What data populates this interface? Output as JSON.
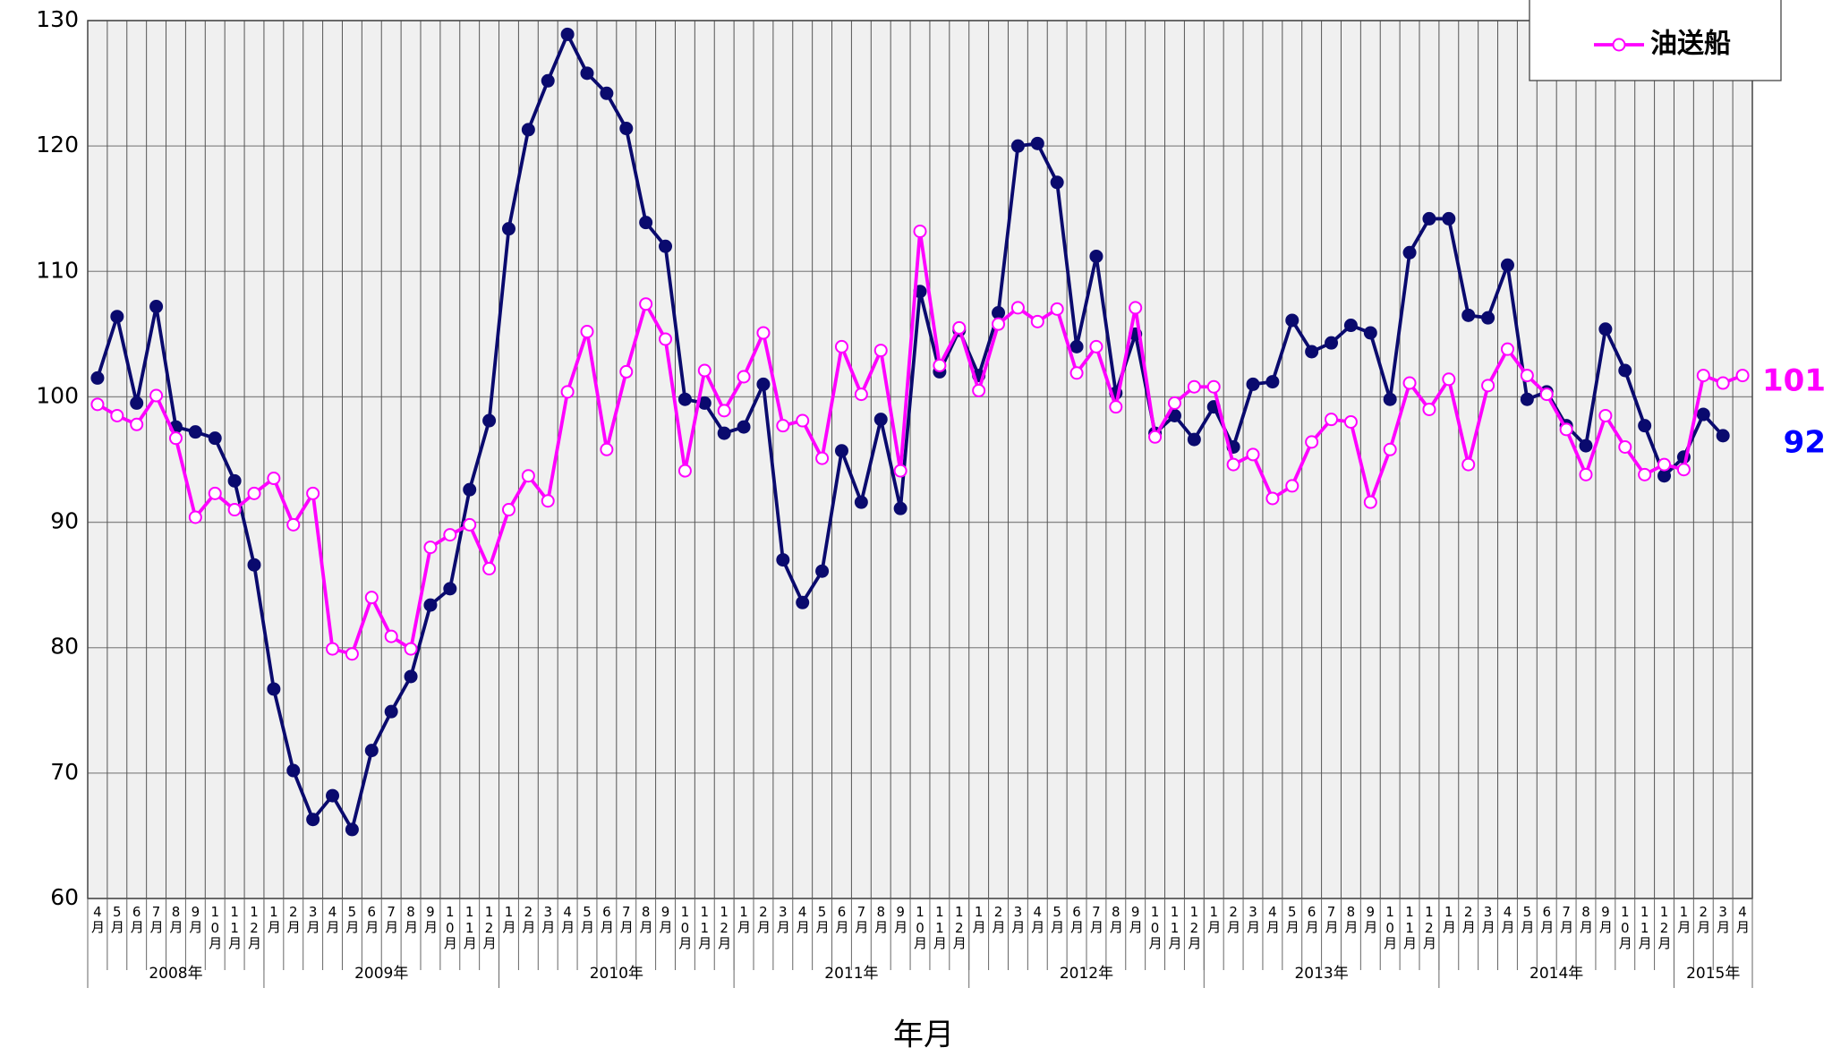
{
  "chart_data": {
    "type": "line",
    "x_label": "年月",
    "categories": [
      "4月",
      "5月",
      "6月",
      "7月",
      "8月",
      "9月",
      "10月",
      "11月",
      "12月",
      "1月",
      "2月",
      "3月",
      "4月",
      "5月",
      "6月",
      "7月",
      "8月",
      "9月",
      "10月",
      "11月",
      "12月",
      "1月",
      "2月",
      "3月",
      "4月",
      "5月",
      "6月",
      "7月",
      "8月",
      "9月",
      "10月",
      "11月",
      "12月",
      "1月",
      "2月",
      "3月",
      "4月",
      "5月",
      "6月",
      "7月",
      "8月",
      "9月",
      "10月",
      "11月",
      "12月",
      "1月",
      "2月",
      "3月",
      "4月",
      "5月",
      "6月",
      "7月",
      "8月",
      "9月",
      "10月",
      "11月",
      "12月",
      "1月",
      "2月",
      "3月",
      "4月",
      "5月",
      "6月",
      "7月",
      "8月",
      "9月",
      "10月",
      "11月",
      "12月",
      "1月",
      "2月",
      "3月",
      "4月",
      "5月",
      "6月",
      "7月",
      "8月",
      "9月",
      "10月",
      "11月",
      "12月",
      "1月",
      "2月",
      "3月",
      "4月"
    ],
    "category_groups": [
      "2008年",
      "2009年",
      "2010年",
      "2011年",
      "2012年",
      "2013年",
      "2014年",
      "2015年"
    ],
    "series": [
      {
        "color": "#0a0a6e",
        "marker": "filled",
        "values": [
          101.5,
          106.4,
          99.5,
          107.2,
          97.6,
          97.2,
          96.7,
          93.3,
          86.6,
          76.7,
          70.2,
          66.3,
          68.2,
          65.5,
          71.8,
          74.9,
          77.7,
          83.4,
          84.7,
          92.6,
          98.1,
          113.4,
          121.3,
          125.2,
          128.9,
          125.8,
          124.2,
          121.4,
          113.9,
          112.0,
          99.8,
          99.5,
          97.1,
          97.6,
          101.0,
          87.0,
          83.6,
          86.1,
          95.7,
          91.6,
          98.2,
          91.1,
          108.4,
          102.0,
          105.3,
          101.7,
          106.7,
          120.0,
          120.2,
          117.1,
          104.0,
          111.2,
          100.3,
          105.0,
          97.1,
          98.5,
          96.6,
          99.2,
          96.0,
          101.0,
          101.2,
          106.1,
          103.6,
          104.3,
          105.7,
          105.1,
          99.8,
          111.5,
          114.2,
          114.2,
          106.5,
          106.3,
          110.5,
          99.8,
          100.4,
          97.7,
          96.1,
          105.4,
          102.1,
          97.7,
          93.7,
          95.2,
          98.6,
          96.9,
          null
        ]
      },
      {
        "name": "油送船",
        "color": "#ff00ff",
        "marker": "hollow",
        "values": [
          99.4,
          98.5,
          97.8,
          100.1,
          96.7,
          90.4,
          92.3,
          91.0,
          92.3,
          93.5,
          89.8,
          92.3,
          79.9,
          79.5,
          84.0,
          80.9,
          79.9,
          88.0,
          89.0,
          89.8,
          86.3,
          91.0,
          93.7,
          91.7,
          100.4,
          105.2,
          95.8,
          102.0,
          107.4,
          104.6,
          94.1,
          102.1,
          98.9,
          101.6,
          105.1,
          97.7,
          98.1,
          95.1,
          104.0,
          100.2,
          103.7,
          94.1,
          113.2,
          102.5,
          105.5,
          100.5,
          105.8,
          107.1,
          106.0,
          107.0,
          101.9,
          104.0,
          99.2,
          107.1,
          96.8,
          99.5,
          100.8,
          100.8,
          94.6,
          95.4,
          91.9,
          92.9,
          96.4,
          98.2,
          98.0,
          91.6,
          95.8,
          101.1,
          99.0,
          101.4,
          94.6,
          100.9,
          103.8,
          101.7,
          100.2,
          97.4,
          93.8,
          98.5,
          96.0,
          93.8,
          94.6,
          94.2,
          101.7,
          101.1,
          101.7
        ]
      }
    ],
    "annotations": [
      {
        "text": "101",
        "color": "#ff00ff"
      },
      {
        "text": "92",
        "color": "#0000ff"
      }
    ],
    "ylim": [
      60,
      130
    ],
    "yticks": [
      60,
      70,
      80,
      90,
      100,
      110,
      120,
      130
    ],
    "grid": true,
    "legend": "top-right"
  }
}
